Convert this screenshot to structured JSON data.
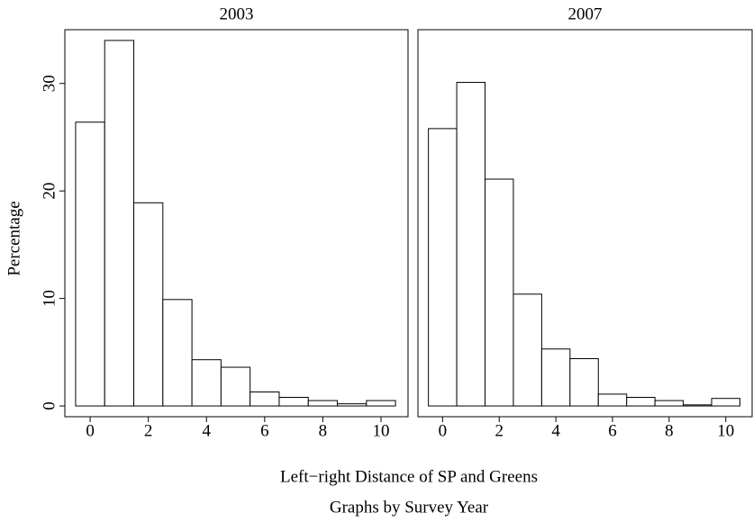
{
  "chart_data": {
    "type": "histogram",
    "ylabel": "Percentage",
    "xlabel": "Left−right Distance of SP and Greens",
    "note": "Graphs by Survey Year",
    "bins": [
      -0.5,
      0.5,
      1.5,
      2.5,
      3.5,
      4.5,
      5.5,
      6.5,
      7.5,
      8.5,
      9.5,
      10.5
    ],
    "xlim": [
      -0.87,
      10.93
    ],
    "xticks": [
      0,
      2,
      4,
      6,
      8,
      10
    ],
    "ylim": [
      -1,
      35
    ],
    "yticks": [
      0,
      10,
      20,
      30
    ],
    "color": "#ffffff",
    "panels": [
      {
        "title": "2003",
        "values": [
          26.4,
          34.0,
          18.9,
          9.9,
          4.3,
          3.6,
          1.3,
          0.8,
          0.5,
          0.2,
          0.5
        ]
      },
      {
        "title": "2007",
        "values": [
          25.8,
          30.1,
          21.1,
          10.4,
          5.3,
          4.4,
          1.1,
          0.8,
          0.5,
          0.1,
          0.7
        ]
      }
    ]
  }
}
